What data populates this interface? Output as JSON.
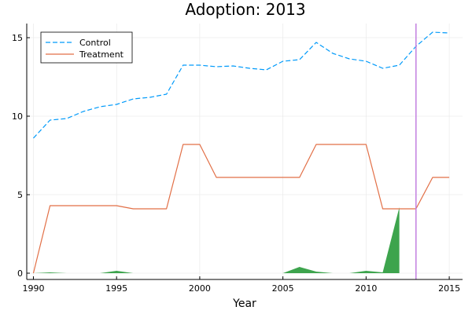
{
  "chart_data": {
    "type": "line",
    "title": "Adoption: 2013",
    "xlabel": "Year",
    "ylabel": "",
    "xlim": [
      1989.6,
      2015.8
    ],
    "ylim": [
      -0.4,
      15.9
    ],
    "xticks": [
      1990,
      1995,
      2000,
      2005,
      2010,
      2015
    ],
    "yticks": [
      0,
      5,
      10,
      15
    ],
    "grid": true,
    "legend_position": "top-left",
    "x": [
      1990,
      1991,
      1992,
      1993,
      1994,
      1995,
      1996,
      1997,
      1998,
      1999,
      2000,
      2001,
      2002,
      2003,
      2004,
      2005,
      2006,
      2007,
      2008,
      2009,
      2010,
      2011,
      2012,
      2013,
      2014,
      2015
    ],
    "series": [
      {
        "name": "Control",
        "style": "dashed",
        "color": "#009AFA",
        "values": [
          8.6,
          9.75,
          9.85,
          10.3,
          10.6,
          10.75,
          11.1,
          11.2,
          11.4,
          13.25,
          13.25,
          13.15,
          13.2,
          13.05,
          12.95,
          13.5,
          13.6,
          14.7,
          14.0,
          13.65,
          13.5,
          13.05,
          13.25,
          14.45,
          15.35,
          15.3
        ]
      },
      {
        "name": "Treatment",
        "style": "solid",
        "color": "#E26F46",
        "values": [
          0.0,
          4.3,
          4.3,
          4.3,
          4.3,
          4.3,
          4.1,
          4.1,
          4.1,
          8.2,
          8.2,
          6.1,
          6.1,
          6.1,
          6.1,
          6.1,
          6.1,
          8.2,
          8.2,
          8.2,
          8.2,
          4.1,
          4.1,
          4.1,
          6.1,
          6.1
        ]
      }
    ],
    "fill": {
      "color": "#3DA44D",
      "x": [
        1990,
        1991,
        1992,
        1993,
        1994,
        1995,
        1996,
        1997,
        1998,
        1999,
        2000,
        2001,
        2002,
        2003,
        2004,
        2005,
        2006,
        2007,
        2008,
        2009,
        2010,
        2011,
        2012
      ],
      "values": [
        0.0,
        0.05,
        0.0,
        0.0,
        0.0,
        0.15,
        0.0,
        0.0,
        0.0,
        0.0,
        0.0,
        0.0,
        0.0,
        0.0,
        0.0,
        0.0,
        0.4,
        0.1,
        0.0,
        0.0,
        0.15,
        0.05,
        4.2
      ]
    },
    "vline": {
      "x": 2013,
      "color": "#C27FE0"
    }
  }
}
